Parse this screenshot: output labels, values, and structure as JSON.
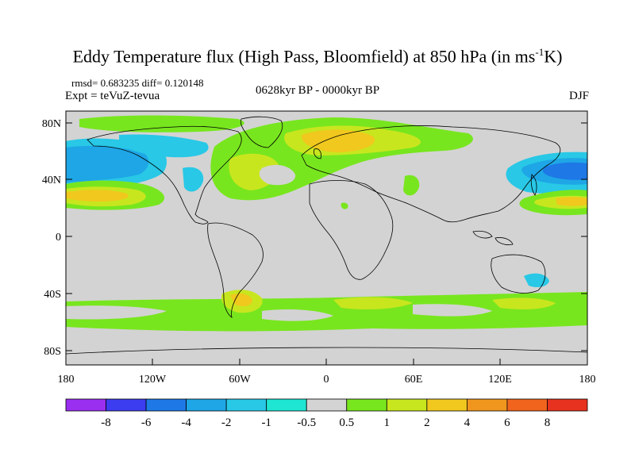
{
  "title": "Eddy Temperature flux (High Pass, Bloomfield) at 850 hPa (in ms",
  "title_sup": "-1",
  "title_end": "K)",
  "stats": "rmsd= 0.683235 diff= 0.120148",
  "experiment": "Expt = teVuZ-tevua",
  "period": "0628kyr BP - 0000kyr BP",
  "season": "DJF",
  "lat_labels": [
    "80N",
    "40N",
    "0",
    "40S",
    "80S"
  ],
  "lon_labels": [
    "180",
    "120W",
    "60W",
    "0",
    "60E",
    "120E",
    "180"
  ],
  "colorbar": {
    "labels": [
      "-8",
      "-6",
      "-4",
      "-2",
      "-1",
      "-0.5",
      "0.5",
      "1",
      "2",
      "4",
      "6",
      "8"
    ],
    "colors": [
      "#9b2ff0",
      "#3c3cf0",
      "#1e78e6",
      "#1ea6e6",
      "#28c8e6",
      "#1ee6d2",
      "#d3d3d3",
      "#78e61e",
      "#c8e61e",
      "#f0c81e",
      "#f0961e",
      "#f0641e",
      "#e6321e"
    ]
  },
  "colors": {
    "ocean_neutral": "#d3d3d3",
    "coast": "#000000"
  }
}
